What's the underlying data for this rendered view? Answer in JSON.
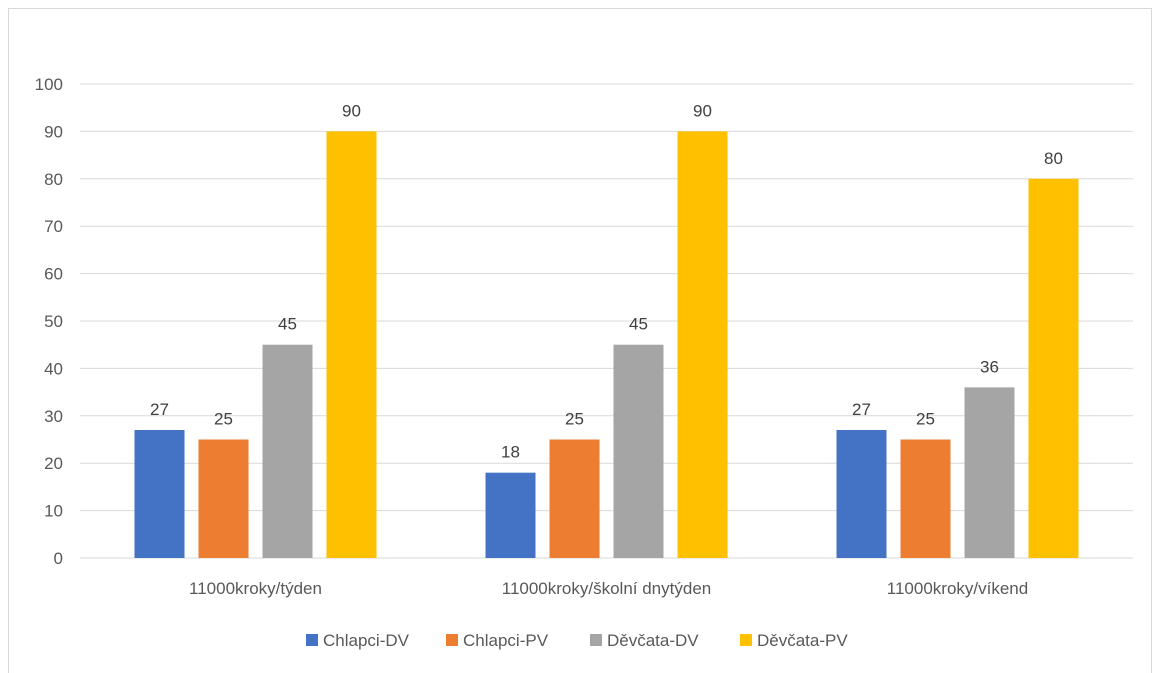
{
  "chart_data": {
    "type": "bar",
    "title": "",
    "categories": [
      "11000kroky/týden",
      "11000kroky/školní dnytýden",
      "11000kroky/víkend"
    ],
    "series": [
      {
        "name": "Chlapci-DV",
        "values": [
          27,
          18,
          27
        ],
        "color": "#4472C4"
      },
      {
        "name": "Chlapci-PV",
        "values": [
          25,
          25,
          25
        ],
        "color": "#ED7D31"
      },
      {
        "name": "Děvčata-DV",
        "values": [
          45,
          45,
          36
        ],
        "color": "#A5A5A5"
      },
      {
        "name": "Děvčata-PV",
        "values": [
          90,
          90,
          80
        ],
        "color": "#FFC000"
      }
    ],
    "ylim": [
      0,
      100
    ],
    "yticks": [
      "0",
      "10",
      "20",
      "30",
      "40",
      "50",
      "60",
      "70",
      "80",
      "90",
      "100"
    ],
    "grid": true,
    "legend": "bottom",
    "data_labels": true
  }
}
